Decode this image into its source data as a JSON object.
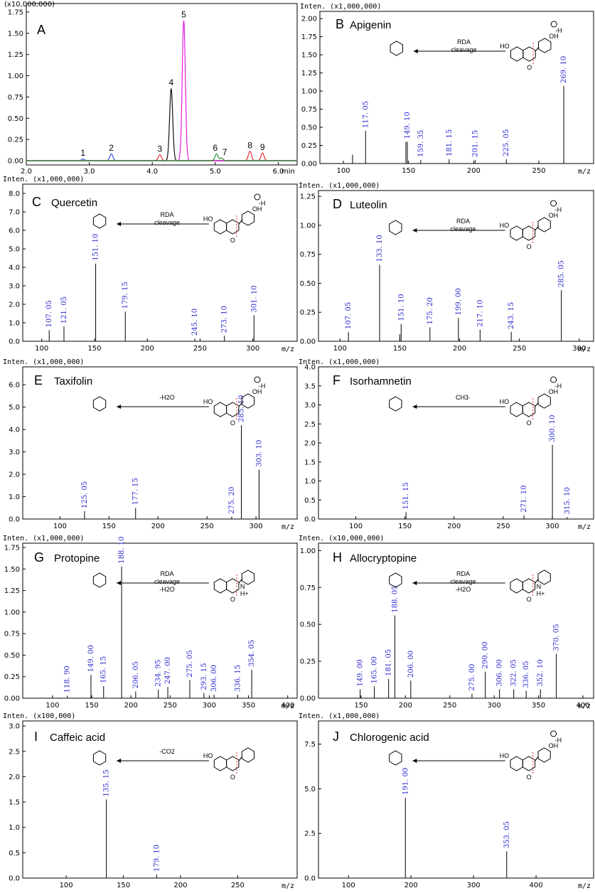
{
  "chart_data": [
    {
      "type": "line",
      "id": "A",
      "panel_letter": "A",
      "y_scale_label": "(x10,000,000)",
      "xlabel": "min",
      "xlim": [
        2.0,
        6.3
      ],
      "ylim": [
        -0.05,
        1.85
      ],
      "x_ticks": [
        "2.0",
        "3.0",
        "4.0",
        "5.0",
        "6.0"
      ],
      "x_tick_values": [
        2.0,
        3.0,
        4.0,
        5.0,
        6.0
      ],
      "y_ticks": [
        "0.00",
        "0.25",
        "0.50",
        "0.75",
        "1.00",
        "1.25",
        "1.50",
        "1.75"
      ],
      "y_tick_values": [
        0.0,
        0.25,
        0.5,
        0.75,
        1.0,
        1.25,
        1.5,
        1.75
      ],
      "series": [
        {
          "name": "trace-blue",
          "color": "#3355dd",
          "peaks": [
            {
              "t": 2.9,
              "h": 0.02
            },
            {
              "t": 3.35,
              "h": 0.08
            }
          ]
        },
        {
          "name": "trace-red",
          "color": "#e0303a",
          "peaks": [
            {
              "t": 4.12,
              "h": 0.07
            },
            {
              "t": 5.55,
              "h": 0.11
            },
            {
              "t": 5.75,
              "h": 0.09
            }
          ]
        },
        {
          "name": "trace-black",
          "color": "#111111",
          "peaks": [
            {
              "t": 4.3,
              "h": 0.85
            }
          ]
        },
        {
          "name": "trace-magenta",
          "color": "#e020e0",
          "peaks": [
            {
              "t": 4.5,
              "h": 1.65
            }
          ]
        },
        {
          "name": "trace-green",
          "color": "#2a9a2a",
          "peaks": [
            {
              "t": 5.02,
              "h": 0.08
            },
            {
              "t": 5.1,
              "h": 0.03
            }
          ]
        }
      ],
      "peak_labels": [
        {
          "text": "1",
          "t": 2.9,
          "y": 0.04
        },
        {
          "text": "2",
          "t": 3.35,
          "y": 0.1
        },
        {
          "text": "3",
          "t": 4.12,
          "y": 0.09
        },
        {
          "text": "4",
          "t": 4.3,
          "y": 0.87
        },
        {
          "text": "5",
          "t": 4.5,
          "y": 1.67
        },
        {
          "text": "6",
          "t": 5.0,
          "y": 0.1
        },
        {
          "text": "7",
          "t": 5.15,
          "y": 0.05
        },
        {
          "text": "8",
          "t": 5.55,
          "y": 0.13
        },
        {
          "text": "9",
          "t": 5.75,
          "y": 0.11
        }
      ]
    },
    {
      "type": "bar",
      "id": "B",
      "panel_letter": "B",
      "title": "Apigenin",
      "y_scale_label": "Inten. (x1,000,000)",
      "xlabel": "m/z",
      "xlim": [
        82,
        292
      ],
      "ylim": [
        0,
        2.1
      ],
      "x_ticks": [
        "100",
        "150",
        "200",
        "250"
      ],
      "x_tick_values": [
        100,
        150,
        200,
        250
      ],
      "y_ticks": [
        "0.00",
        "0.25",
        "0.50",
        "0.75",
        "1.00",
        "1.25",
        "1.50",
        "1.75",
        "2.00"
      ],
      "y_tick_values": [
        0,
        0.25,
        0.5,
        0.75,
        1.0,
        1.25,
        1.5,
        1.75,
        2.0
      ],
      "peaks": [
        {
          "mz": 107.05,
          "i": 0.12
        },
        {
          "mz": 117.05,
          "i": 0.45,
          "label": "117. 05"
        },
        {
          "mz": 148.0,
          "i": 0.3
        },
        {
          "mz": 149.1,
          "i": 0.3,
          "label": "149. 10"
        },
        {
          "mz": 159.35,
          "i": 0.05,
          "label": "159. 35"
        },
        {
          "mz": 181.15,
          "i": 0.06,
          "label": "181. 15"
        },
        {
          "mz": 201.15,
          "i": 0.05,
          "label": "201. 15"
        },
        {
          "mz": 225.05,
          "i": 0.06,
          "label": "225. 05"
        },
        {
          "mz": 269.1,
          "i": 1.07,
          "label": "269. 10"
        }
      ],
      "annotations": [
        "RDA",
        "cleavage",
        "HO",
        "OH",
        "O",
        "-H"
      ]
    },
    {
      "type": "bar",
      "id": "C",
      "panel_letter": "C",
      "title": "Quercetin",
      "y_scale_label": "Inten. (x1,000,000)",
      "xlabel": "m/z",
      "xlim": [
        82,
        342
      ],
      "ylim": [
        0,
        8.5
      ],
      "x_ticks": [
        "100",
        "150",
        "200",
        "250",
        "300"
      ],
      "x_tick_values": [
        100,
        150,
        200,
        250,
        300
      ],
      "y_ticks": [
        "0.0",
        "1.0",
        "2.0",
        "3.0",
        "4.0",
        "5.0",
        "6.0",
        "7.0",
        "8.0"
      ],
      "y_tick_values": [
        0,
        1,
        2,
        3,
        4,
        5,
        6,
        7,
        8
      ],
      "peaks": [
        {
          "mz": 107.05,
          "i": 0.6,
          "label": "107. 05"
        },
        {
          "mz": 121.05,
          "i": 0.8,
          "label": "121. 05"
        },
        {
          "mz": 151.1,
          "i": 4.2,
          "label": "151. 10"
        },
        {
          "mz": 179.15,
          "i": 1.6,
          "label": "179. 15"
        },
        {
          "mz": 245.1,
          "i": 0.15,
          "label": "245. 10"
        },
        {
          "mz": 273.1,
          "i": 0.3,
          "label": "273. 10"
        },
        {
          "mz": 301.1,
          "i": 1.4,
          "label": "301. 10"
        }
      ],
      "annotations": [
        "RDA",
        "cleavage",
        "HO",
        "OH",
        "O",
        "-H"
      ]
    },
    {
      "type": "bar",
      "id": "D",
      "panel_letter": "D",
      "title": "Luteolin",
      "y_scale_label": "Inten. (x1,000,000)",
      "xlabel": "m/z",
      "xlim": [
        82,
        312
      ],
      "ylim": [
        0,
        1.3
      ],
      "x_ticks": [
        "100",
        "150",
        "200",
        "250",
        "300"
      ],
      "x_tick_values": [
        100,
        150,
        200,
        250,
        300
      ],
      "y_ticks": [
        "0.00",
        "0.25",
        "0.50",
        "0.75",
        "1.00",
        "1.25"
      ],
      "y_tick_values": [
        0,
        0.25,
        0.5,
        0.75,
        1.0,
        1.25
      ],
      "peaks": [
        {
          "mz": 107.05,
          "i": 0.08,
          "label": "107. 05"
        },
        {
          "mz": 133.1,
          "i": 0.66,
          "label": "133. 10"
        },
        {
          "mz": 150.0,
          "i": 0.06
        },
        {
          "mz": 151.1,
          "i": 0.15,
          "label": "151. 10"
        },
        {
          "mz": 175.2,
          "i": 0.12,
          "label": "175. 20"
        },
        {
          "mz": 199.0,
          "i": 0.2,
          "label": "199. 00"
        },
        {
          "mz": 217.1,
          "i": 0.1,
          "label": "217. 10"
        },
        {
          "mz": 243.15,
          "i": 0.08,
          "label": "243. 15"
        },
        {
          "mz": 285.05,
          "i": 0.44,
          "label": "285. 05"
        }
      ],
      "annotations": [
        "RDA",
        "cleavage",
        "HO",
        "OH",
        "O",
        "-H"
      ]
    },
    {
      "type": "bar",
      "id": "E",
      "panel_letter": "E",
      "title": "Taxifolin",
      "y_scale_label": "Inten. (x1,000,000)",
      "xlabel": "m/z",
      "xlim": [
        62,
        342
      ],
      "ylim": [
        0,
        6.8
      ],
      "x_ticks": [
        "100",
        "150",
        "200",
        "250",
        "300"
      ],
      "x_tick_values": [
        100,
        150,
        200,
        250,
        300
      ],
      "y_ticks": [
        "0.0",
        "1.0",
        "2.0",
        "3.0",
        "4.0",
        "5.0",
        "6.0"
      ],
      "y_tick_values": [
        0,
        1,
        2,
        3,
        4,
        5,
        6
      ],
      "peaks": [
        {
          "mz": 125.05,
          "i": 0.35,
          "label": "125. 05"
        },
        {
          "mz": 177.15,
          "i": 0.5,
          "label": "177. 15"
        },
        {
          "mz": 275.2,
          "i": 0.1,
          "label": "275. 20"
        },
        {
          "mz": 285.1,
          "i": 4.2,
          "label": "285. 10"
        },
        {
          "mz": 303.1,
          "i": 2.2,
          "label": "303. 10"
        }
      ],
      "annotations": [
        "-H2O",
        "HO",
        "OH",
        "O",
        "-H"
      ]
    },
    {
      "type": "bar",
      "id": "F",
      "panel_letter": "F",
      "title": "Isorhamnetin",
      "y_scale_label": "Inten. (x1,000,000)",
      "xlabel": "m/z",
      "xlim": [
        62,
        342
      ],
      "ylim": [
        0,
        4.0
      ],
      "x_ticks": [
        "100",
        "150",
        "200",
        "250",
        "300"
      ],
      "x_tick_values": [
        100,
        150,
        200,
        250,
        300
      ],
      "y_ticks": [
        "0.0",
        "0.5",
        "1.0",
        "1.5",
        "2.0",
        "2.5",
        "3.0",
        "3.5",
        "4.0"
      ],
      "y_tick_values": [
        0,
        0.5,
        1,
        1.5,
        2,
        2.5,
        3,
        3.5,
        4
      ],
      "peaks": [
        {
          "mz": 151.15,
          "i": 0.18,
          "label": "151. 15"
        },
        {
          "mz": 271.1,
          "i": 0.1,
          "label": "271. 10"
        },
        {
          "mz": 300.1,
          "i": 1.95,
          "label": "300. 10"
        },
        {
          "mz": 315.1,
          "i": 0.05,
          "label": "315. 10"
        }
      ],
      "annotations": [
        "CH3·",
        "HO",
        "OH",
        "O",
        "-H"
      ]
    },
    {
      "type": "bar",
      "id": "G",
      "panel_letter": "G",
      "title": "Protopine",
      "y_scale_label": "Inten. (x1,000,000)",
      "xlabel": "m/z",
      "xlim": [
        62,
        412
      ],
      "ylim": [
        0,
        1.8
      ],
      "x_ticks": [
        "100",
        "150",
        "200",
        "250",
        "300",
        "350",
        "400"
      ],
      "x_tick_values": [
        100,
        150,
        200,
        250,
        300,
        350,
        400
      ],
      "y_ticks": [
        "0.00",
        "0.25",
        "0.50",
        "0.75",
        "1.00",
        "1.25",
        "1.50",
        "1.75"
      ],
      "y_tick_values": [
        0,
        0.25,
        0.5,
        0.75,
        1.0,
        1.25,
        1.5,
        1.75
      ],
      "peaks": [
        {
          "mz": 118.9,
          "i": 0.03,
          "label": "118. 90"
        },
        {
          "mz": 149.0,
          "i": 0.27,
          "label": "149. 00"
        },
        {
          "mz": 165.15,
          "i": 0.14,
          "label": "165. 15"
        },
        {
          "mz": 188.1,
          "i": 1.53,
          "label": "188. 10"
        },
        {
          "mz": 206.05,
          "i": 0.08,
          "label": "206. 05"
        },
        {
          "mz": 234.95,
          "i": 0.1,
          "label": "234. 95"
        },
        {
          "mz": 247.0,
          "i": 0.13,
          "label": "247. 00"
        },
        {
          "mz": 275.05,
          "i": 0.21,
          "label": "275. 05"
        },
        {
          "mz": 293.15,
          "i": 0.06,
          "label": "293. 15"
        },
        {
          "mz": 306.0,
          "i": 0.04,
          "label": "306. 00"
        },
        {
          "mz": 336.15,
          "i": 0.04,
          "label": "336. 15"
        },
        {
          "mz": 354.05,
          "i": 0.33,
          "label": "354. 05"
        }
      ],
      "annotations": [
        "RDA",
        "cleavage",
        "-H2O",
        "O",
        "N",
        "H+"
      ]
    },
    {
      "type": "bar",
      "id": "H",
      "panel_letter": "H",
      "title": "Allocryptopine",
      "y_scale_label": "Inten. (x10,000,000)",
      "xlabel": "m/z",
      "xlim": [
        102,
        412
      ],
      "ylim": [
        0,
        1.05
      ],
      "x_ticks": [
        "150",
        "200",
        "250",
        "300",
        "350",
        "400"
      ],
      "x_tick_values": [
        150,
        200,
        250,
        300,
        350,
        400
      ],
      "y_ticks": [
        "0.00",
        "0.25",
        "0.50",
        "0.75",
        "1.00"
      ],
      "y_tick_values": [
        0,
        0.25,
        0.5,
        0.75,
        1.0
      ],
      "peaks": [
        {
          "mz": 149.0,
          "i": 0.06,
          "label": "149. 00"
        },
        {
          "mz": 165.0,
          "i": 0.08,
          "label": "165. 00"
        },
        {
          "mz": 181.05,
          "i": 0.13,
          "label": "181. 05"
        },
        {
          "mz": 188.05,
          "i": 0.56,
          "label": "188. 05"
        },
        {
          "mz": 206.0,
          "i": 0.12,
          "label": "206. 00"
        },
        {
          "mz": 275.0,
          "i": 0.03,
          "label": "275. 00"
        },
        {
          "mz": 290.0,
          "i": 0.18,
          "label": "290. 00"
        },
        {
          "mz": 306.0,
          "i": 0.06,
          "label": "306. 00"
        },
        {
          "mz": 322.05,
          "i": 0.06,
          "label": "322. 05"
        },
        {
          "mz": 336.05,
          "i": 0.05,
          "label": "336. 05"
        },
        {
          "mz": 352.1,
          "i": 0.06,
          "label": "352. 10"
        },
        {
          "mz": 370.05,
          "i": 0.3,
          "label": "370. 05"
        }
      ],
      "annotations": [
        "RDA",
        "cleavage",
        "-H2O",
        "O",
        "N",
        "H+"
      ]
    },
    {
      "type": "bar",
      "id": "I",
      "panel_letter": "I",
      "title": "Caffeic acid",
      "y_scale_label": "Inten. (x100,000)",
      "xlabel": "m/z",
      "xlim": [
        62,
        302
      ],
      "ylim": [
        0,
        3.1
      ],
      "x_ticks": [
        "100",
        "150",
        "200",
        "250"
      ],
      "x_tick_values": [
        100,
        150,
        200,
        250
      ],
      "y_ticks": [
        "0.0",
        "0.5",
        "1.0",
        "1.5",
        "2.0",
        "2.5",
        "3.0"
      ],
      "y_tick_values": [
        0,
        0.5,
        1,
        1.5,
        2,
        2.5,
        3
      ],
      "peaks": [
        {
          "mz": 135.15,
          "i": 1.55,
          "label": "135. 15"
        },
        {
          "mz": 179.1,
          "i": 0.07,
          "label": "179. 10"
        }
      ],
      "annotations": [
        "-CO2",
        "HO",
        "O"
      ]
    },
    {
      "type": "bar",
      "id": "J",
      "panel_letter": "J",
      "title": "Chlorogenic acid",
      "y_scale_label": "Inten. (x1,000,000)",
      "xlabel": "m/z",
      "xlim": [
        52,
        492
      ],
      "ylim": [
        0,
        8.8
      ],
      "x_ticks": [
        "100",
        "200",
        "300",
        "400"
      ],
      "x_tick_values": [
        100,
        200,
        300,
        400
      ],
      "y_ticks": [
        "0.0",
        "2.5",
        "5.0",
        "7.5"
      ],
      "y_tick_values": [
        0,
        2.5,
        5.0,
        7.5
      ],
      "peaks": [
        {
          "mz": 191.0,
          "i": 4.5,
          "label": "191. 00"
        },
        {
          "mz": 353.05,
          "i": 1.5,
          "label": "353. 05"
        }
      ],
      "annotations": [
        "HO",
        "OH",
        "O",
        "-H"
      ]
    }
  ]
}
